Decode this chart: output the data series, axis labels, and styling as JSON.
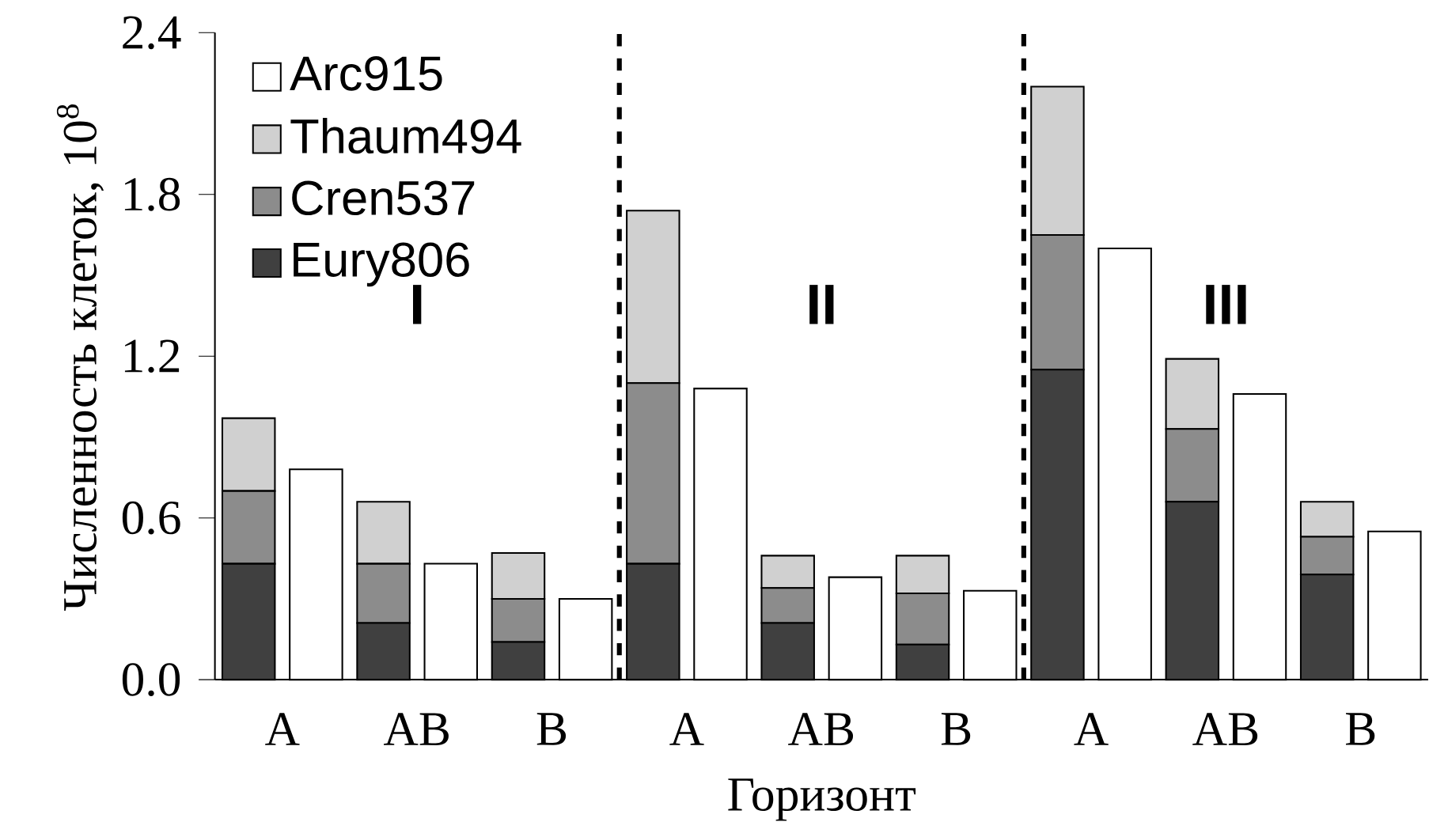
{
  "chart_data": {
    "type": "bar",
    "stacked": true,
    "xlabel": "Горизонт",
    "ylabel": "Численность клеток, 10$^{8}$",
    "categories": [
      "A",
      null,
      "AB",
      null,
      "B",
      null,
      "A",
      null,
      "AB",
      null,
      "B",
      null,
      "A",
      null,
      "AB",
      null,
      "B",
      null
    ],
    "series": [
      {
        "name": "Eury806",
        "color": "#404040",
        "values": [
          0.43,
          null,
          0.21,
          null,
          0.14,
          null,
          0.43,
          null,
          0.21,
          null,
          0.13,
          null,
          1.15,
          null,
          0.66,
          null,
          0.39,
          null
        ]
      },
      {
        "name": "Cren537",
        "color": "#8c8c8c",
        "values": [
          0.27,
          null,
          0.22,
          null,
          0.16,
          null,
          0.67,
          null,
          0.13,
          null,
          0.19,
          null,
          0.5,
          null,
          0.27,
          null,
          0.14,
          null
        ]
      },
      {
        "name": "Thaum494",
        "color": "#d0d0d0",
        "values": [
          0.27,
          null,
          0.23,
          null,
          0.17,
          null,
          0.64,
          null,
          0.12,
          null,
          0.14,
          null,
          0.55,
          null,
          0.26,
          null,
          0.13,
          null
        ]
      },
      {
        "name": "Arc915",
        "color": "#ffffff",
        "values": [
          null,
          0.78,
          null,
          0.43,
          null,
          0.3,
          null,
          1.08,
          null,
          0.38,
          null,
          0.33,
          null,
          1.6,
          null,
          1.06,
          null,
          0.55
        ]
      }
    ],
    "ylim": [
      0,
      2.4
    ],
    "yticks": [
      {
        "value": 0,
        "label": "0.0"
      },
      0.6,
      1.2,
      1.8,
      2.4
    ],
    "annotations": [
      "I",
      "II",
      "III"
    ],
    "legend": "top left"
  }
}
